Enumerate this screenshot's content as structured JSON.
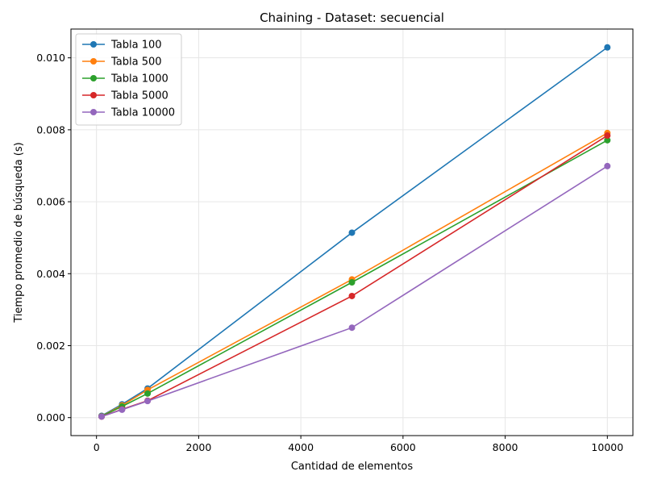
{
  "chart_data": {
    "type": "line",
    "title": "Chaining - Dataset: secuencial",
    "xlabel": "Cantidad de elementos",
    "ylabel": "Tiempo promedio de búsqueda (s)",
    "xlim": [
      -500,
      10500
    ],
    "ylim": [
      -0.0005,
      0.0108
    ],
    "xticks": [
      0,
      2000,
      4000,
      6000,
      8000,
      10000
    ],
    "xtick_labels": [
      "0",
      "2000",
      "4000",
      "6000",
      "8000",
      "10000"
    ],
    "yticks": [
      0,
      0.002,
      0.004,
      0.006,
      0.008,
      0.01
    ],
    "ytick_labels": [
      "0.000",
      "0.002",
      "0.004",
      "0.006",
      "0.008",
      "0.010"
    ],
    "grid": true,
    "legend_position": "top-left",
    "x": [
      100,
      500,
      1000,
      5000,
      10000
    ],
    "series": [
      {
        "name": "Tabla 100",
        "color": "#1f77b4",
        "values": [
          5e-05,
          0.00037,
          0.00081,
          0.00514,
          0.01029
        ]
      },
      {
        "name": "Tabla 500",
        "color": "#ff7f0e",
        "values": [
          4e-05,
          0.00034,
          0.00077,
          0.00384,
          0.00791
        ]
      },
      {
        "name": "Tabla 1000",
        "color": "#2ca02c",
        "values": [
          4e-05,
          0.00031,
          0.00067,
          0.00376,
          0.00771
        ]
      },
      {
        "name": "Tabla 5000",
        "color": "#d62728",
        "values": [
          3e-05,
          0.00023,
          0.00047,
          0.00338,
          0.00784
        ]
      },
      {
        "name": "Tabla 10000",
        "color": "#9467bd",
        "values": [
          3e-05,
          0.00022,
          0.00046,
          0.0025,
          0.00699
        ]
      }
    ]
  }
}
